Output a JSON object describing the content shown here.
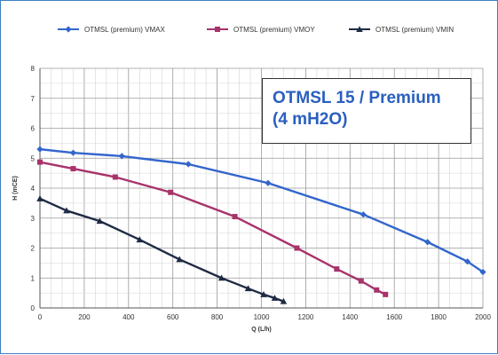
{
  "chart_data": {
    "type": "line",
    "title": "",
    "xlabel": "Q (L/h)",
    "ylabel": "H (mCE)",
    "xlim": [
      0,
      2000
    ],
    "ylim": [
      0,
      8
    ],
    "x_ticks": [
      "0",
      "200",
      "400",
      "600",
      "800",
      "1000",
      "1200",
      "1400",
      "1600",
      "1800",
      "2000"
    ],
    "y_ticks": [
      "0",
      "1",
      "2",
      "3",
      "4",
      "5",
      "6",
      "7",
      "8"
    ],
    "grid": true,
    "legend_position": "top",
    "annotation": {
      "line1": "OTMSL 15 / Premium",
      "line2": "(4 mH2O)"
    },
    "series": [
      {
        "name": "OTMSL (premium) VMAX",
        "color": "#3366cc",
        "marker": "diamond",
        "x": [
          0,
          150,
          370,
          670,
          1030,
          1460,
          1750,
          1930,
          2000
        ],
        "y": [
          5.3,
          5.18,
          5.07,
          4.8,
          4.17,
          3.12,
          2.2,
          1.55,
          1.2
        ]
      },
      {
        "name": "OTMSL (premium) VMOY",
        "color": "#a8336b",
        "marker": "square",
        "x": [
          0,
          150,
          340,
          590,
          880,
          1160,
          1340,
          1450,
          1520,
          1560
        ],
        "y": [
          4.87,
          4.65,
          4.37,
          3.86,
          3.05,
          2.0,
          1.3,
          0.9,
          0.6,
          0.45
        ]
      },
      {
        "name": "OTMSL (premium) VMIN",
        "color": "#1f2a44",
        "marker": "triangle",
        "x": [
          0,
          120,
          270,
          450,
          630,
          820,
          940,
          1010,
          1060,
          1100
        ],
        "y": [
          3.65,
          3.25,
          2.9,
          2.28,
          1.62,
          1.0,
          0.65,
          0.45,
          0.33,
          0.22
        ]
      }
    ]
  }
}
